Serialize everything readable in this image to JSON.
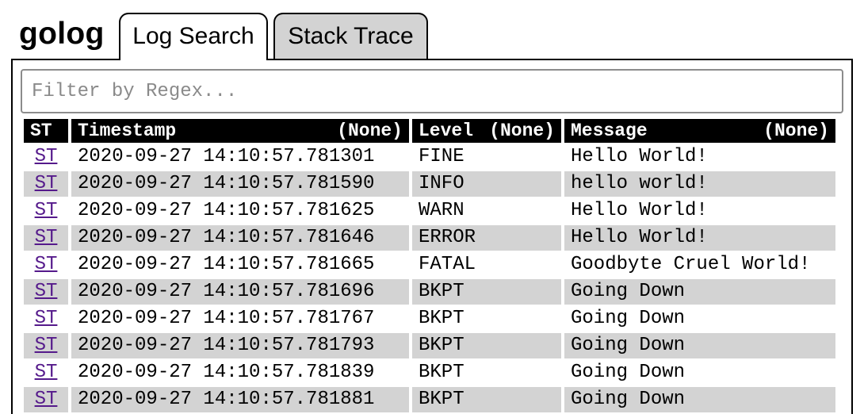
{
  "app": {
    "title": "golog"
  },
  "tabs": [
    {
      "label": "Log Search",
      "active": true
    },
    {
      "label": "Stack Trace",
      "active": false
    }
  ],
  "filter": {
    "placeholder": "Filter by Regex...",
    "value": ""
  },
  "table": {
    "columns": {
      "st": "ST",
      "timestamp": "Timestamp",
      "timestamp_sort": "(None)",
      "level": "Level",
      "level_sort": "(None)",
      "message": "Message",
      "message_sort": "(None)"
    },
    "rows": [
      {
        "st": "ST",
        "timestamp": "2020-09-27 14:10:57.781301",
        "level": "FINE",
        "message": "Hello World!"
      },
      {
        "st": "ST",
        "timestamp": "2020-09-27 14:10:57.781590",
        "level": "INFO",
        "message": "hello world!"
      },
      {
        "st": "ST",
        "timestamp": "2020-09-27 14:10:57.781625",
        "level": "WARN",
        "message": "Hello World!"
      },
      {
        "st": "ST",
        "timestamp": "2020-09-27 14:10:57.781646",
        "level": "ERROR",
        "message": "Hello World!"
      },
      {
        "st": "ST",
        "timestamp": "2020-09-27 14:10:57.781665",
        "level": "FATAL",
        "message": "Goodbyte Cruel World!"
      },
      {
        "st": "ST",
        "timestamp": "2020-09-27 14:10:57.781696",
        "level": "BKPT",
        "message": "Going Down"
      },
      {
        "st": "ST",
        "timestamp": "2020-09-27 14:10:57.781767",
        "level": "BKPT",
        "message": "Going Down"
      },
      {
        "st": "ST",
        "timestamp": "2020-09-27 14:10:57.781793",
        "level": "BKPT",
        "message": "Going Down"
      },
      {
        "st": "ST",
        "timestamp": "2020-09-27 14:10:57.781839",
        "level": "BKPT",
        "message": "Going Down"
      },
      {
        "st": "ST",
        "timestamp": "2020-09-27 14:10:57.781881",
        "level": "BKPT",
        "message": "Going Down"
      }
    ]
  },
  "colors": {
    "header_bg": "#000000",
    "alt_row_bg": "#d3d3d3",
    "link": "#551a8b",
    "inactive_tab_bg": "#d3d3d3"
  }
}
